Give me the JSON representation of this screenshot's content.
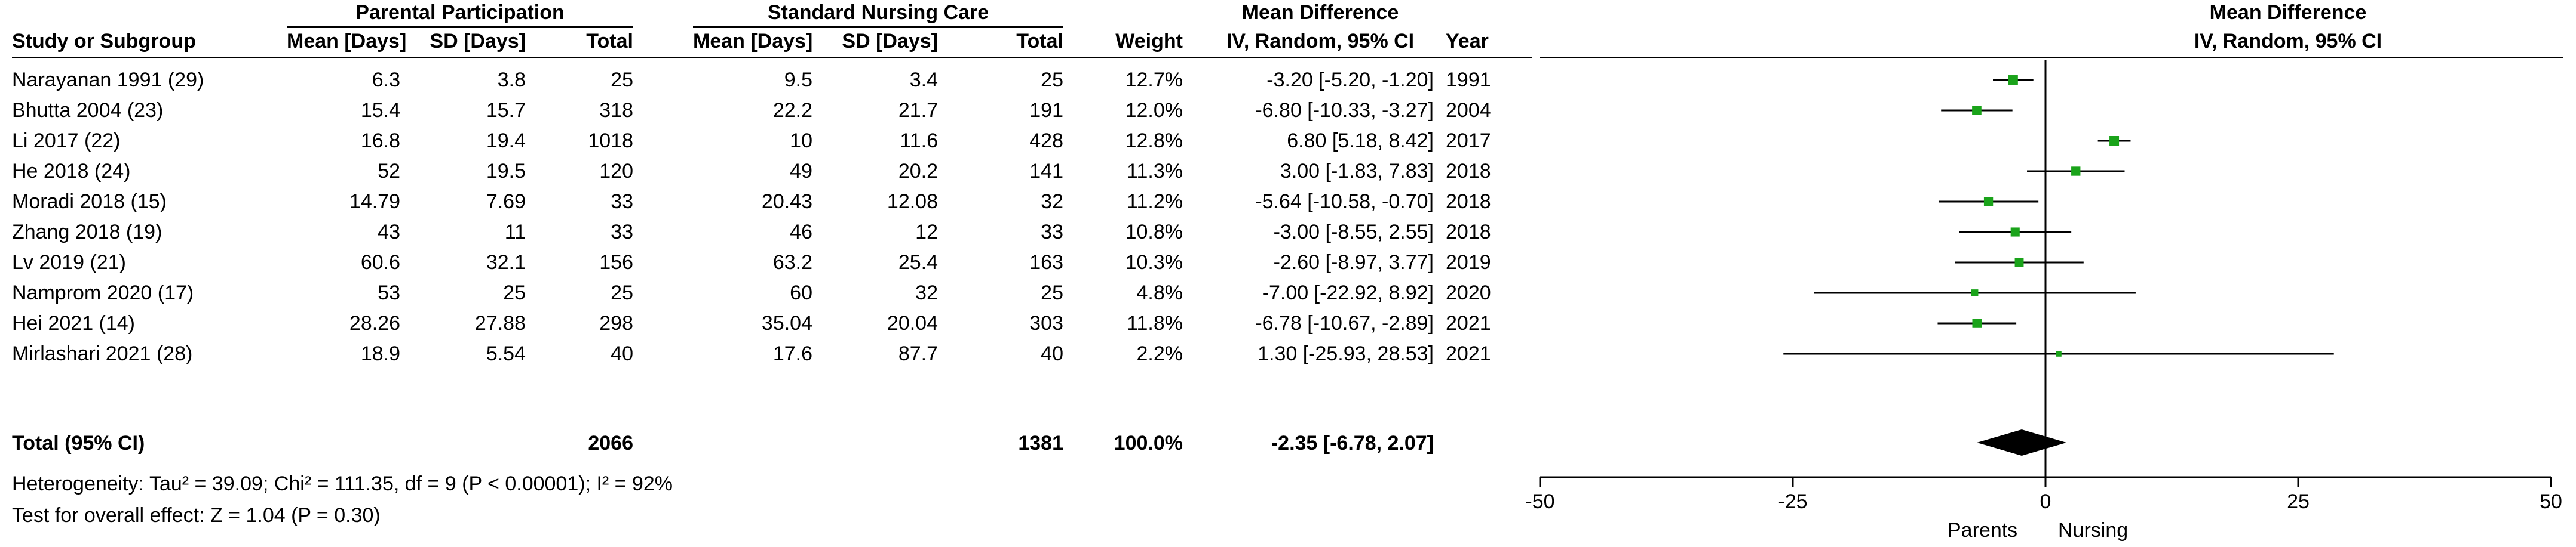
{
  "headers": {
    "group1": "Parental Participation",
    "group2": "Standard Nursing Care",
    "md_top": "Mean Difference",
    "md_sub": "IV, Random, 95% CI",
    "plot_top": "Mean Difference",
    "plot_sub": "IV, Random, 95% CI",
    "study": "Study or Subgroup",
    "mean1": "Mean [Days]",
    "sd1": "SD [Days]",
    "total1": "Total",
    "mean2": "Mean [Days]",
    "sd2": "SD [Days]",
    "total2": "Total",
    "weight": "Weight",
    "year": "Year"
  },
  "total_row": {
    "label": "Total (95% CI)",
    "total1": "2066",
    "total2": "1381",
    "weight": "100.0%",
    "ci": "-2.35 [-6.78, 2.07]"
  },
  "heterogeneity": "Heterogeneity: Tau² = 39.09; Chi² = 111.35, df = 9 (P < 0.00001); I² = 92%",
  "overall_effect": "Test for overall effect: Z = 1.04 (P = 0.30)",
  "axis_left_label": "Parents",
  "axis_right_label": "Nursing",
  "colors": {
    "marker": "#1aa31a",
    "line": "#000000",
    "diamond": "#000000"
  },
  "chart_data": {
    "type": "forest",
    "xlim": [
      -50,
      50
    ],
    "xticks": [
      -50,
      -25,
      0,
      25,
      50
    ],
    "xtick_labels": [
      "-50",
      "-25",
      "0",
      "25",
      "50"
    ],
    "studies": [
      {
        "name": "Narayanan 1991 (29)",
        "mean1": "6.3",
        "sd1": "3.8",
        "total1": "25",
        "mean2": "9.5",
        "sd2": "3.4",
        "total2": "25",
        "weight": "12.7%",
        "ci_text": "-3.20 [-5.20, -1.20]",
        "year": "1991",
        "md": -3.2,
        "lo": -5.2,
        "hi": -1.2
      },
      {
        "name": "Bhutta 2004 (23)",
        "mean1": "15.4",
        "sd1": "15.7",
        "total1": "318",
        "mean2": "22.2",
        "sd2": "21.7",
        "total2": "191",
        "weight": "12.0%",
        "ci_text": "-6.80 [-10.33, -3.27]",
        "year": "2004",
        "md": -6.8,
        "lo": -10.33,
        "hi": -3.27
      },
      {
        "name": "Li 2017 (22)",
        "mean1": "16.8",
        "sd1": "19.4",
        "total1": "1018",
        "mean2": "10",
        "sd2": "11.6",
        "total2": "428",
        "weight": "12.8%",
        "ci_text": "6.80 [5.18, 8.42]",
        "year": "2017",
        "md": 6.8,
        "lo": 5.18,
        "hi": 8.42
      },
      {
        "name": "He 2018 (24)",
        "mean1": "52",
        "sd1": "19.5",
        "total1": "120",
        "mean2": "49",
        "sd2": "20.2",
        "total2": "141",
        "weight": "11.3%",
        "ci_text": "3.00 [-1.83, 7.83]",
        "year": "2018",
        "md": 3.0,
        "lo": -1.83,
        "hi": 7.83
      },
      {
        "name": "Moradi 2018 (15)",
        "mean1": "14.79",
        "sd1": "7.69",
        "total1": "33",
        "mean2": "20.43",
        "sd2": "12.08",
        "total2": "32",
        "weight": "11.2%",
        "ci_text": "-5.64 [-10.58, -0.70]",
        "year": "2018",
        "md": -5.64,
        "lo": -10.58,
        "hi": -0.7
      },
      {
        "name": "Zhang 2018 (19)",
        "mean1": "43",
        "sd1": "11",
        "total1": "33",
        "mean2": "46",
        "sd2": "12",
        "total2": "33",
        "weight": "10.8%",
        "ci_text": "-3.00 [-8.55, 2.55]",
        "year": "2018",
        "md": -3.0,
        "lo": -8.55,
        "hi": 2.55
      },
      {
        "name": "Lv 2019 (21)",
        "mean1": "60.6",
        "sd1": "32.1",
        "total1": "156",
        "mean2": "63.2",
        "sd2": "25.4",
        "total2": "163",
        "weight": "10.3%",
        "ci_text": "-2.60 [-8.97, 3.77]",
        "year": "2019",
        "md": -2.6,
        "lo": -8.97,
        "hi": 3.77
      },
      {
        "name": "Namprom 2020 (17)",
        "mean1": "53",
        "sd1": "25",
        "total1": "25",
        "mean2": "60",
        "sd2": "32",
        "total2": "25",
        "weight": "4.8%",
        "ci_text": "-7.00 [-22.92, 8.92]",
        "year": "2020",
        "md": -7.0,
        "lo": -22.92,
        "hi": 8.92
      },
      {
        "name": "Hei 2021 (14)",
        "mean1": "28.26",
        "sd1": "27.88",
        "total1": "298",
        "mean2": "35.04",
        "sd2": "20.04",
        "total2": "303",
        "weight": "11.8%",
        "ci_text": "-6.78 [-10.67, -2.89]",
        "year": "2021",
        "md": -6.78,
        "lo": -10.67,
        "hi": -2.89
      },
      {
        "name": "Mirlashari 2021 (28)",
        "mean1": "18.9",
        "sd1": "5.54",
        "total1": "40",
        "mean2": "17.6",
        "sd2": "87.7",
        "total2": "40",
        "weight": "2.2%",
        "ci_text": "1.30 [-25.93, 28.53]",
        "year": "2021",
        "md": 1.3,
        "lo": -25.93,
        "hi": 28.53
      }
    ],
    "pooled": {
      "md": -2.35,
      "lo": -6.78,
      "hi": 2.07,
      "weight": 100.0
    }
  }
}
